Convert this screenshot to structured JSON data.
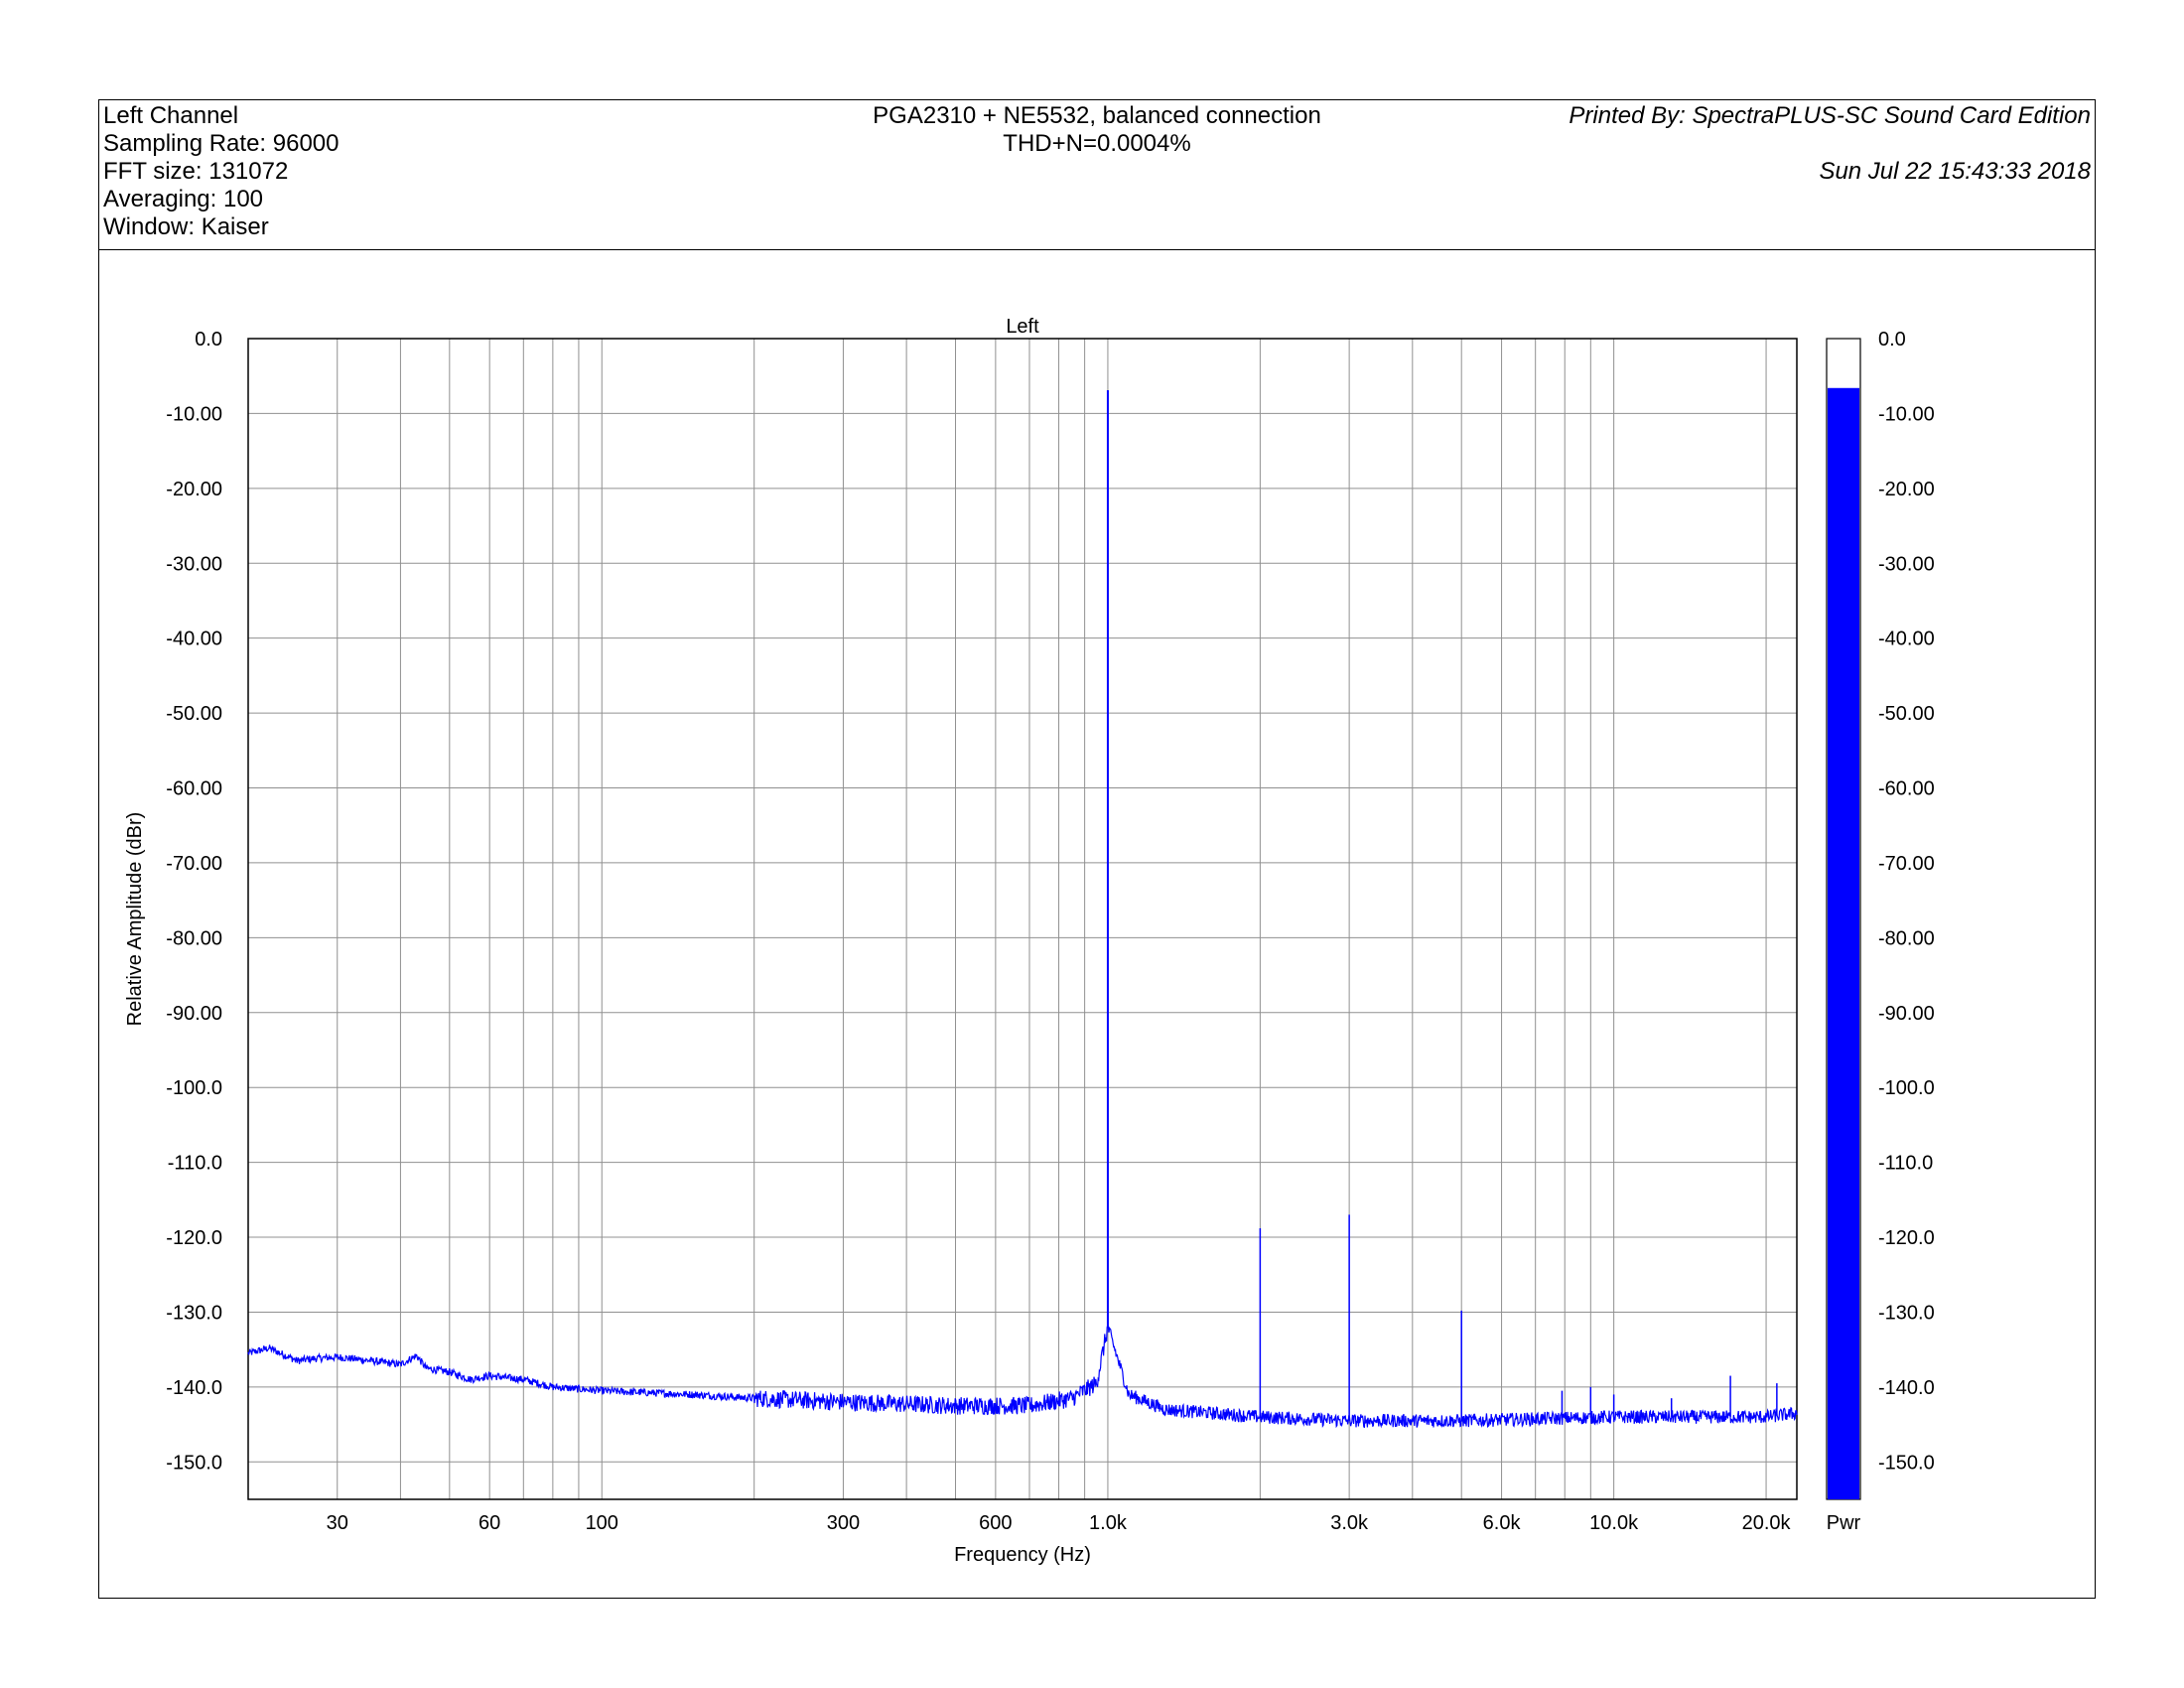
{
  "header": {
    "left_lines": [
      "Left Channel",
      "Sampling Rate: 96000",
      "FFT size: 131072",
      "Averaging: 100",
      "Window: Kaiser"
    ],
    "title": "PGA2310 + NE5532, balanced connection",
    "subtitle": "THD+N=0.0004%",
    "printed_by": "Printed By: SpectraPLUS-SC Sound Card Edition",
    "printed_date": "Sun Jul 22 15:43:33 2018"
  },
  "colors": {
    "trace": "#0000ff",
    "bar": "#0000ff",
    "grid": "#909090",
    "axes": "#000000"
  },
  "chart_data": {
    "type": "line",
    "title": "Left",
    "xlabel": "Frequency (Hz)",
    "ylabel": "Relative Amplitude (dBr)",
    "x_scale": "log",
    "xlim": [
      20,
      23000
    ],
    "ylim": [
      -155,
      0
    ],
    "grid": true,
    "x_tick_labels": [
      {
        "value": 30,
        "label": "30"
      },
      {
        "value": 60,
        "label": "60"
      },
      {
        "value": 100,
        "label": "100"
      },
      {
        "value": 300,
        "label": "300"
      },
      {
        "value": 600,
        "label": "600"
      },
      {
        "value": 1000,
        "label": "1.0k"
      },
      {
        "value": 3000,
        "label": "3.0k"
      },
      {
        "value": 6000,
        "label": "6.0k"
      },
      {
        "value": 10000,
        "label": "10.0k"
      },
      {
        "value": 20000,
        "label": "20.0k"
      }
    ],
    "x_grid_values": [
      30,
      40,
      50,
      60,
      70,
      80,
      90,
      100,
      200,
      300,
      400,
      500,
      600,
      700,
      800,
      900,
      1000,
      2000,
      3000,
      4000,
      5000,
      6000,
      7000,
      8000,
      9000,
      10000,
      20000
    ],
    "y_tick_labels": [
      "0.0",
      "-10.00",
      "-20.00",
      "-30.00",
      "-40.00",
      "-50.00",
      "-60.00",
      "-70.00",
      "-80.00",
      "-90.00",
      "-100.0",
      "-110.0",
      "-120.0",
      "-130.0",
      "-140.0",
      "-150.0"
    ],
    "y_tick_values": [
      0,
      -10,
      -20,
      -30,
      -40,
      -50,
      -60,
      -70,
      -80,
      -90,
      -100,
      -110,
      -120,
      -130,
      -140,
      -150
    ],
    "noise_floor": {
      "x": [
        20,
        22,
        25,
        27,
        30,
        35,
        40,
        43,
        45,
        50,
        55,
        60,
        70,
        80,
        100,
        150,
        200,
        300,
        500,
        700,
        850,
        950,
        1000,
        1100,
        1300,
        2000,
        3000,
        5000,
        10000,
        20000,
        23000
      ],
      "y": [
        -135.5,
        -134.8,
        -136.5,
        -136.2,
        -136,
        -136.5,
        -137,
        -135.8,
        -137.5,
        -138,
        -139,
        -138.5,
        -139,
        -140,
        -140.5,
        -141,
        -141.5,
        -142,
        -142.5,
        -142.5,
        -141.5,
        -139.5,
        -132,
        -141,
        -143,
        -144,
        -144.5,
        -144.5,
        -144,
        -144,
        -143.5
      ]
    },
    "peaks": [
      {
        "freq": 1000,
        "dbr": -6.9
      },
      {
        "freq": 2000,
        "dbr": -118.8
      },
      {
        "freq": 3000,
        "dbr": -117
      },
      {
        "freq": 5000,
        "dbr": -129.8
      },
      {
        "freq": 7900,
        "dbr": -140.5
      },
      {
        "freq": 9000,
        "dbr": -140
      },
      {
        "freq": 10000,
        "dbr": -141
      },
      {
        "freq": 13000,
        "dbr": -141.5
      },
      {
        "freq": 17000,
        "dbr": -138.5
      },
      {
        "freq": 21000,
        "dbr": -139.5
      }
    ],
    "side_bar": {
      "label": "Pwr",
      "value_dbr": -6.6,
      "tick_labels": [
        "0.0",
        "-10.00",
        "-20.00",
        "-30.00",
        "-40.00",
        "-50.00",
        "-60.00",
        "-70.00",
        "-80.00",
        "-90.00",
        "-100.0",
        "-110.0",
        "-120.0",
        "-130.0",
        "-140.0",
        "-150.0"
      ],
      "tick_values": [
        0,
        -10,
        -20,
        -30,
        -40,
        -50,
        -60,
        -70,
        -80,
        -90,
        -100,
        -110,
        -120,
        -130,
        -140,
        -150
      ]
    }
  }
}
